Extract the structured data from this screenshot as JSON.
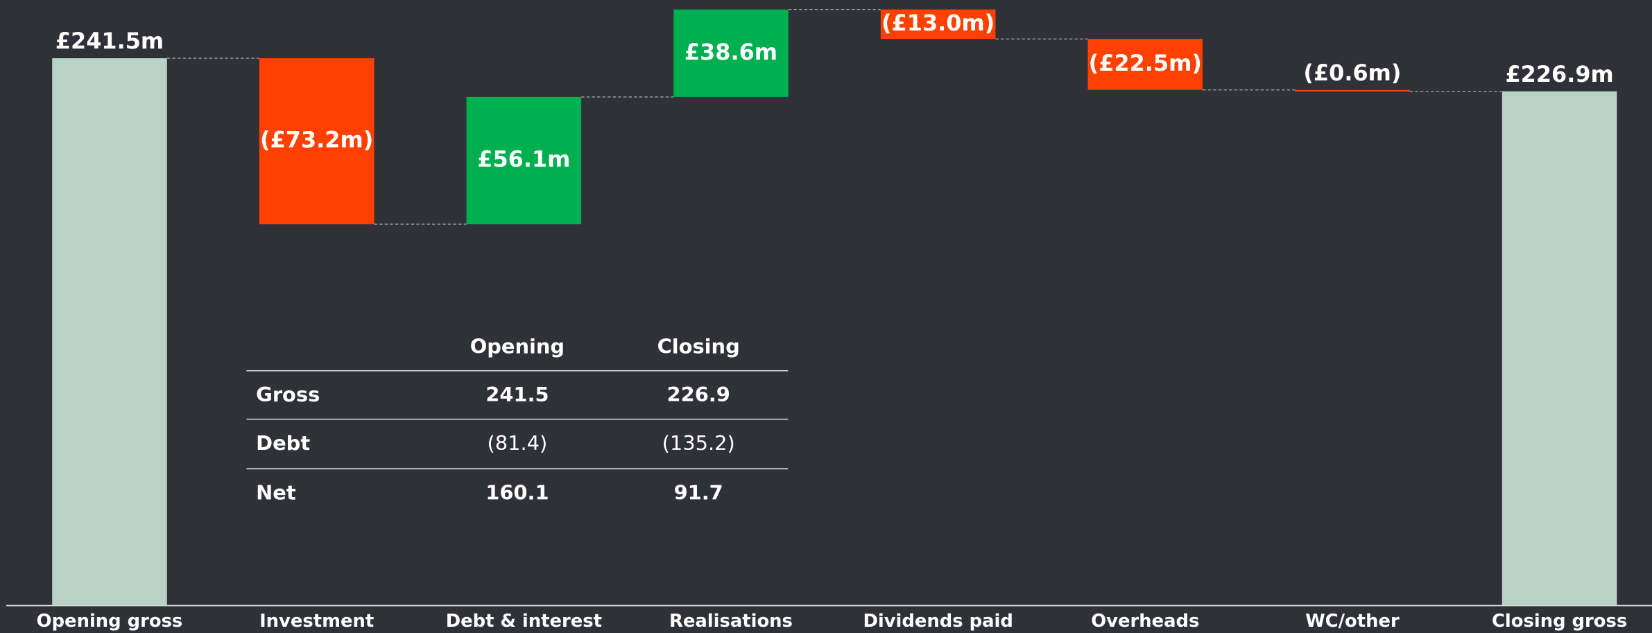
{
  "chart_data": {
    "type": "waterfall",
    "categories": [
      "Opening gross",
      "Investment",
      "Debt & interest",
      "Realisations",
      "Dividends paid",
      "Overheads",
      "WC/other",
      "Closing gross"
    ],
    "values": [
      241.5,
      -73.2,
      56.1,
      38.6,
      -13.0,
      -22.5,
      -0.6,
      226.9
    ],
    "value_labels": [
      "£241.5m",
      "(£73.2m)",
      "£56.1m",
      "£38.6m",
      "(£13.0m)",
      "(£22.5m)",
      "(£0.6m)",
      "£226.9m"
    ],
    "measure": [
      "total",
      "relative",
      "relative",
      "relative",
      "relative",
      "relative",
      "relative",
      "total"
    ],
    "total_color": "#b8d3c5",
    "increase_color": "#00b050",
    "decrease_color": "#ff4000"
  },
  "table": {
    "columns": [
      "Opening",
      "Closing"
    ],
    "rows": [
      {
        "label": "Gross",
        "values": [
          "241.5",
          "226.9"
        ]
      },
      {
        "label": "Debt",
        "values": [
          "(81.4)",
          "(135.2)"
        ]
      },
      {
        "label": "Net",
        "values": [
          "160.1",
          "91.7"
        ]
      }
    ]
  }
}
